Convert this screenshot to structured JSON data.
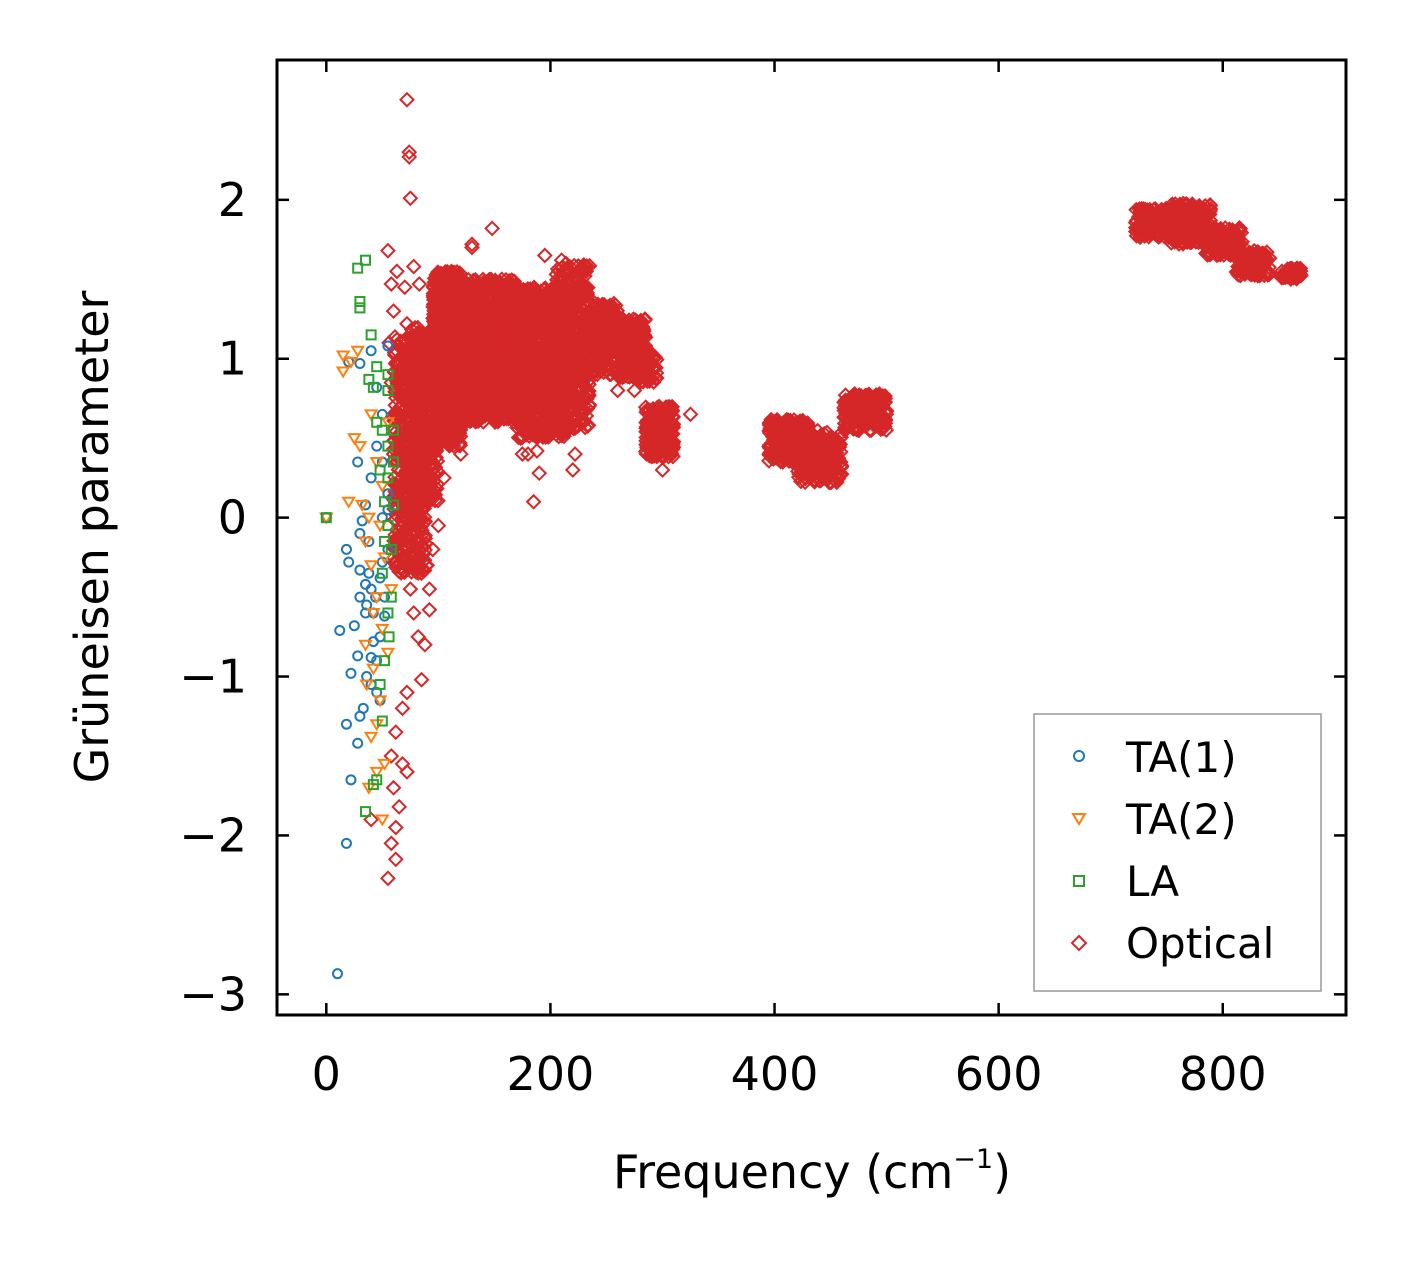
{
  "chart_data": {
    "type": "scatter",
    "xlabel": "Frequency (cm",
    "xlabel_superscript": "−1",
    "xlabel_suffix": ")",
    "ylabel": "Grüneisen parameter",
    "xlim": [
      -44,
      910
    ],
    "ylim": [
      -3.13,
      2.88
    ],
    "xticks": [
      0,
      200,
      400,
      600,
      800
    ],
    "yticks": [
      -3,
      -2,
      -1,
      0,
      1,
      2
    ],
    "xtick_labels": [
      "0",
      "200",
      "400",
      "600",
      "800"
    ],
    "ytick_labels": [
      "−3",
      "−2",
      "−1",
      "0",
      "1",
      "2"
    ],
    "legend_position": "lower right",
    "series": [
      {
        "name": "TA(1)",
        "marker": "circle",
        "color": "#1f77b4",
        "points": [
          [
            0,
            0
          ],
          [
            10,
            -2.87
          ],
          [
            18,
            -2.05
          ],
          [
            22,
            -1.65
          ],
          [
            18,
            -1.3
          ],
          [
            28,
            -1.42
          ],
          [
            30,
            -1.25
          ],
          [
            22,
            -0.98
          ],
          [
            28,
            -0.87
          ],
          [
            25,
            -0.68
          ],
          [
            12,
            -0.71
          ],
          [
            20,
            -0.28
          ],
          [
            30,
            -0.33
          ],
          [
            18,
            -0.2
          ],
          [
            35,
            -0.6
          ],
          [
            40,
            -0.45
          ],
          [
            38,
            -0.35
          ],
          [
            42,
            -0.6
          ],
          [
            45,
            -0.9
          ],
          [
            40,
            -1.05
          ],
          [
            45,
            -1.1
          ],
          [
            48,
            -0.75
          ],
          [
            52,
            -0.5
          ],
          [
            55,
            -0.2
          ],
          [
            50,
            0.0
          ],
          [
            35,
            0.08
          ],
          [
            40,
            0.25
          ],
          [
            28,
            0.35
          ],
          [
            45,
            0.45
          ],
          [
            50,
            0.65
          ],
          [
            20,
            0.98
          ],
          [
            30,
            0.97
          ],
          [
            40,
            1.05
          ],
          [
            45,
            0.82
          ],
          [
            55,
            1.08
          ],
          [
            50,
            0.35
          ],
          [
            55,
            0.15
          ],
          [
            32,
            -0.02
          ],
          [
            38,
            -0.15
          ],
          [
            48,
            -0.38
          ],
          [
            36,
            -0.55
          ],
          [
            42,
            -0.78
          ],
          [
            33,
            -1.2
          ],
          [
            48,
            -1.15
          ],
          [
            30,
            -0.1
          ],
          [
            50,
            -0.28
          ],
          [
            35,
            -0.42
          ],
          [
            44,
            -0.5
          ],
          [
            52,
            -0.62
          ],
          [
            40,
            -0.88
          ],
          [
            55,
            0.05
          ],
          [
            36,
            -1.0
          ],
          [
            30,
            -0.5
          ]
        ]
      },
      {
        "name": "TA(2)",
        "marker": "triangle-down",
        "color": "#ff7f0e",
        "points": [
          [
            0,
            0
          ],
          [
            15,
            1.02
          ],
          [
            22,
            0.98
          ],
          [
            28,
            1.05
          ],
          [
            15,
            0.92
          ],
          [
            25,
            0.5
          ],
          [
            30,
            0.45
          ],
          [
            20,
            0.1
          ],
          [
            32,
            0.08
          ],
          [
            35,
            -0.15
          ],
          [
            40,
            -0.3
          ],
          [
            45,
            -0.5
          ],
          [
            50,
            -0.7
          ],
          [
            35,
            -0.8
          ],
          [
            42,
            -0.95
          ],
          [
            48,
            -1.15
          ],
          [
            40,
            -1.38
          ],
          [
            52,
            -1.55
          ],
          [
            45,
            -1.6
          ],
          [
            38,
            -1.7
          ],
          [
            50,
            -1.9
          ],
          [
            55,
            -0.85
          ],
          [
            45,
            0.35
          ],
          [
            50,
            0.2
          ],
          [
            55,
            0.6
          ],
          [
            40,
            0.65
          ],
          [
            48,
            -0.05
          ],
          [
            52,
            -0.25
          ],
          [
            42,
            -0.6
          ],
          [
            36,
            -1.05
          ],
          [
            58,
            -0.45
          ],
          [
            45,
            -1.3
          ],
          [
            38,
            0.0
          ]
        ]
      },
      {
        "name": "LA",
        "marker": "square",
        "color": "#2ca02c",
        "points": [
          [
            0,
            0
          ],
          [
            35,
            1.62
          ],
          [
            28,
            1.57
          ],
          [
            30,
            1.36
          ],
          [
            30,
            1.32
          ],
          [
            40,
            1.15
          ],
          [
            38,
            0.87
          ],
          [
            45,
            0.95
          ],
          [
            42,
            0.82
          ],
          [
            55,
            0.8
          ],
          [
            50,
            0.55
          ],
          [
            55,
            0.45
          ],
          [
            48,
            0.3
          ],
          [
            52,
            0.1
          ],
          [
            60,
            0.08
          ],
          [
            55,
            -0.05
          ],
          [
            58,
            -0.2
          ],
          [
            50,
            -0.35
          ],
          [
            55,
            -0.6
          ],
          [
            52,
            -0.9
          ],
          [
            48,
            -1.05
          ],
          [
            50,
            -1.28
          ],
          [
            45,
            -1.65
          ],
          [
            35,
            -1.85
          ],
          [
            42,
            -1.68
          ],
          [
            60,
            0.35
          ],
          [
            55,
            0.25
          ],
          [
            58,
            -0.5
          ],
          [
            52,
            -0.15
          ],
          [
            45,
            0.6
          ],
          [
            55,
            0.9
          ],
          [
            60,
            0.55
          ],
          [
            56,
            -0.75
          ]
        ]
      }
    ],
    "optical": {
      "name": "Optical",
      "marker": "diamond",
      "color": "#d62728",
      "points": [
        [
          72,
          2.63
        ],
        [
          74,
          2.3
        ],
        [
          74,
          2.27
        ],
        [
          75,
          2.01
        ],
        [
          148,
          1.82
        ],
        [
          130,
          1.72
        ],
        [
          55,
          1.68
        ],
        [
          63,
          1.55
        ],
        [
          78,
          1.58
        ],
        [
          58,
          1.47
        ],
        [
          70,
          1.45
        ],
        [
          83,
          1.47
        ],
        [
          60,
          1.3
        ],
        [
          72,
          1.22
        ],
        [
          56,
          1.1
        ],
        [
          66,
          0.97
        ],
        [
          58,
          0.85
        ],
        [
          70,
          0.75
        ],
        [
          62,
          0.65
        ],
        [
          68,
          0.5
        ],
        [
          60,
          0.4
        ],
        [
          72,
          0.3
        ],
        [
          65,
          0.2
        ],
        [
          75,
          0.1
        ],
        [
          68,
          0.0
        ],
        [
          80,
          -0.1
        ],
        [
          72,
          -0.2
        ],
        [
          85,
          -0.35
        ],
        [
          75,
          -0.45
        ],
        [
          92,
          -0.45
        ],
        [
          92,
          -0.58
        ],
        [
          78,
          -0.6
        ],
        [
          82,
          -0.75
        ],
        [
          88,
          -0.8
        ],
        [
          85,
          -1.02
        ],
        [
          72,
          -1.1
        ],
        [
          68,
          -1.2
        ],
        [
          62,
          -1.35
        ],
        [
          58,
          -1.5
        ],
        [
          68,
          -1.55
        ],
        [
          72,
          -1.6
        ],
        [
          60,
          -1.7
        ],
        [
          65,
          -1.82
        ],
        [
          62,
          -1.95
        ],
        [
          58,
          -2.05
        ],
        [
          62,
          -2.15
        ],
        [
          55,
          -2.27
        ],
        [
          40,
          -1.9
        ],
        [
          90,
          -0.3
        ],
        [
          95,
          -0.2
        ],
        [
          100,
          -0.05
        ],
        [
          105,
          0.25
        ],
        [
          120,
          0.4
        ],
        [
          175,
          0.4
        ],
        [
          180,
          0.4
        ],
        [
          188,
          0.42
        ],
        [
          185,
          0.1
        ],
        [
          190,
          0.28
        ],
        [
          220,
          0.3
        ],
        [
          222,
          0.4
        ],
        [
          130,
          1.7
        ],
        [
          195,
          1.65
        ],
        [
          210,
          1.62
        ],
        [
          232,
          1.55
        ],
        [
          260,
          0.8
        ],
        [
          275,
          0.8
        ],
        [
          325,
          0.65
        ],
        [
          300,
          0.3
        ]
      ],
      "clusters": [
        {
          "x": [
            60,
            90
          ],
          "y": [
            -0.35,
            1.15
          ],
          "n": 550
        },
        {
          "x": [
            75,
            100
          ],
          "y": [
            0.1,
            1.2
          ],
          "n": 350
        },
        {
          "x": [
            95,
            120
          ],
          "y": [
            0.45,
            1.55
          ],
          "n": 700
        },
        {
          "x": [
            120,
            170
          ],
          "y": [
            0.6,
            1.5
          ],
          "n": 1000
        },
        {
          "x": [
            170,
            215
          ],
          "y": [
            0.5,
            1.45
          ],
          "n": 800
        },
        {
          "x": [
            205,
            235
          ],
          "y": [
            0.55,
            1.6
          ],
          "n": 450
        },
        {
          "x": [
            235,
            260
          ],
          "y": [
            0.9,
            1.35
          ],
          "n": 180
        },
        {
          "x": [
            258,
            285
          ],
          "y": [
            0.88,
            1.25
          ],
          "n": 200
        },
        {
          "x": [
            280,
            295
          ],
          "y": [
            0.85,
            1.05
          ],
          "n": 60
        },
        {
          "x": [
            285,
            310
          ],
          "y": [
            0.38,
            0.7
          ],
          "n": 220
        },
        {
          "x": [
            395,
            430
          ],
          "y": [
            0.35,
            0.62
          ],
          "n": 280
        },
        {
          "x": [
            420,
            460
          ],
          "y": [
            0.22,
            0.55
          ],
          "n": 260
        },
        {
          "x": [
            462,
            500
          ],
          "y": [
            0.55,
            0.78
          ],
          "n": 200
        },
        {
          "x": [
            722,
            760
          ],
          "y": [
            1.76,
            1.95
          ],
          "n": 160
        },
        {
          "x": [
            752,
            790
          ],
          "y": [
            1.72,
            1.98
          ],
          "n": 180
        },
        {
          "x": [
            785,
            818
          ],
          "y": [
            1.65,
            1.83
          ],
          "n": 150
        },
        {
          "x": [
            812,
            842
          ],
          "y": [
            1.52,
            1.68
          ],
          "n": 110
        },
        {
          "x": [
            852,
            870
          ],
          "y": [
            1.5,
            1.57
          ],
          "n": 60
        }
      ]
    }
  }
}
